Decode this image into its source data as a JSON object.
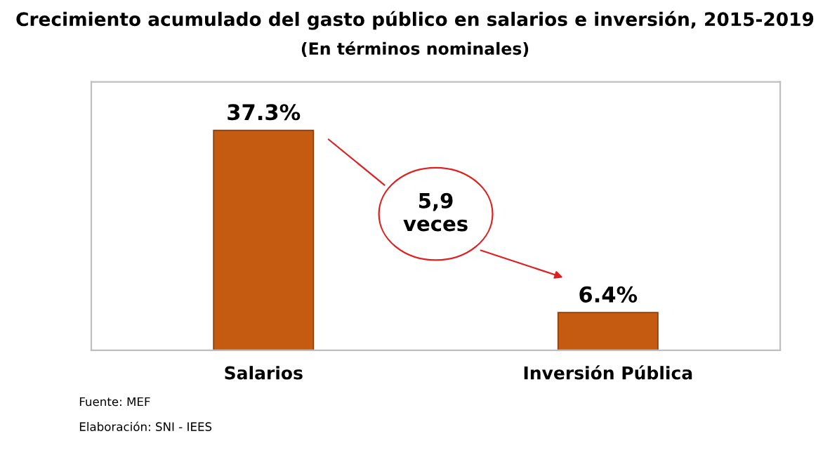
{
  "chart_data": {
    "type": "bar",
    "title": "Crecimiento acumulado del gasto público en salarios e inversión, 2015-2019",
    "subtitle": "(En términos nominales)",
    "categories": [
      "Salarios",
      "Inversión Pública"
    ],
    "values": [
      37.3,
      6.4
    ],
    "color": "#c55a11",
    "value_labels": [
      "37.3%",
      "6.4%"
    ],
    "annotations": [
      "5,9\nveces",
      "Fuente: MEF",
      "Elaboración: SNI - IEES"
    ],
    "grid": false,
    "legend": false
  }
}
